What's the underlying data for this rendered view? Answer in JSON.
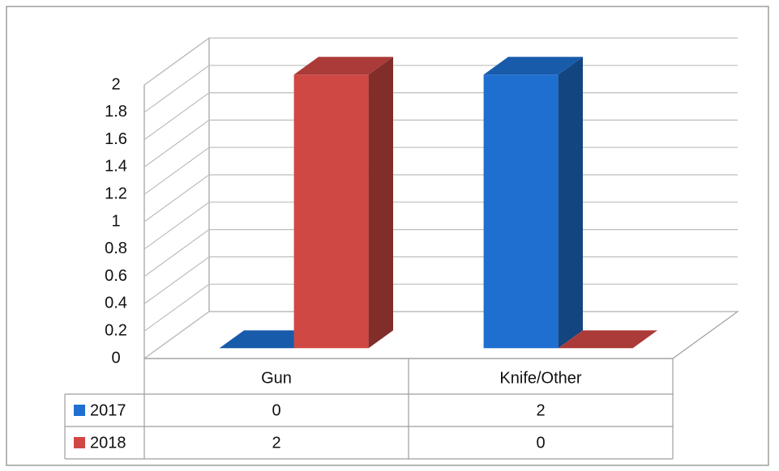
{
  "chart_data": {
    "type": "bar3d",
    "categories": [
      "Gun",
      "Knife/Other"
    ],
    "series": [
      {
        "name": "2017",
        "color": "#1f6fd0",
        "values": [
          0,
          2
        ]
      },
      {
        "name": "2018",
        "color": "#d04844",
        "values": [
          2,
          0
        ]
      }
    ],
    "ylim": [
      0,
      2
    ],
    "yticks": [
      0,
      0.2,
      0.4,
      0.6,
      0.8,
      1,
      1.2,
      1.4,
      1.6,
      1.8,
      2
    ],
    "grid": true,
    "data_table": true
  }
}
